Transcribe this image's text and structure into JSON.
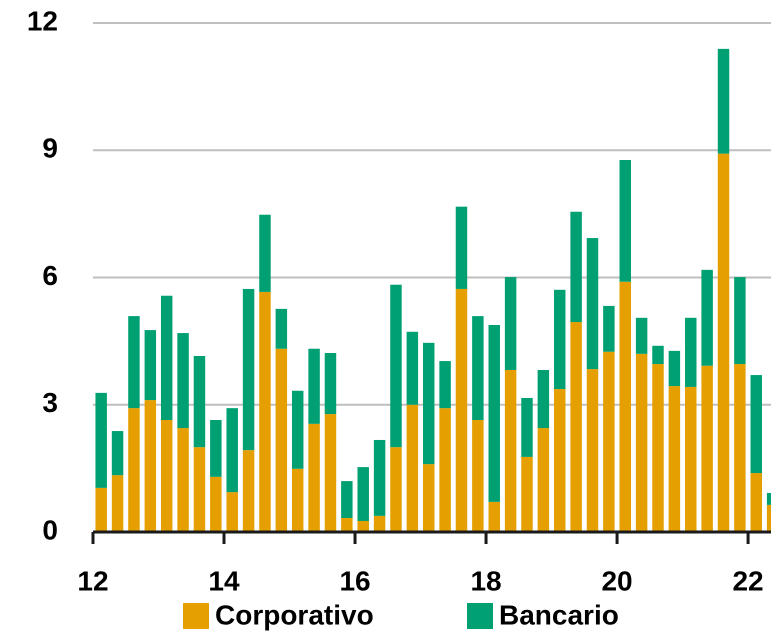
{
  "chart_data": {
    "type": "bar",
    "stacked": true,
    "x": [
      12.125,
      12.375,
      12.625,
      12.875,
      13.125,
      13.375,
      13.625,
      13.875,
      14.125,
      14.375,
      14.625,
      14.875,
      15.125,
      15.375,
      15.625,
      15.875,
      16.125,
      16.375,
      16.625,
      16.875,
      17.125,
      17.375,
      17.625,
      17.875,
      18.125,
      18.375,
      18.625,
      18.875,
      19.125,
      19.375,
      19.625,
      19.875,
      20.125,
      20.375,
      20.625,
      20.875,
      21.125,
      21.375,
      21.625,
      21.875,
      22.125,
      22.375
    ],
    "series": [
      {
        "name": "Corporativo",
        "color": "#e59f00",
        "values": [
          1.04,
          1.34,
          2.92,
          3.11,
          2.64,
          2.45,
          2.0,
          1.3,
          0.94,
          1.93,
          5.66,
          4.32,
          1.49,
          2.55,
          2.78,
          0.33,
          0.26,
          0.38,
          2.0,
          3.0,
          1.6,
          2.92,
          5.73,
          2.64,
          0.71,
          3.82,
          1.77,
          2.45,
          3.37,
          4.95,
          3.84,
          4.25,
          5.9,
          4.2,
          3.96,
          3.44,
          3.42,
          3.92,
          8.92,
          3.96,
          1.39,
          0.64
        ]
      },
      {
        "name": "Bancario",
        "color": "#00a072",
        "values": [
          2.24,
          1.04,
          2.17,
          1.65,
          2.93,
          2.24,
          2.15,
          1.34,
          1.98,
          3.8,
          1.82,
          0.94,
          1.84,
          1.77,
          1.44,
          0.87,
          1.27,
          1.79,
          3.83,
          1.72,
          2.86,
          1.11,
          1.94,
          2.45,
          4.17,
          2.19,
          1.39,
          1.37,
          2.34,
          2.6,
          3.09,
          1.08,
          2.87,
          0.85,
          0.43,
          0.83,
          1.63,
          2.26,
          2.47,
          2.05,
          2.31,
          0.28
        ]
      }
    ],
    "xlim": [
      12,
      22.35
    ],
    "xticks": [
      12,
      14,
      16,
      18,
      20,
      22
    ],
    "ylim": [
      0,
      12
    ],
    "yticks": [
      0,
      3,
      6,
      9,
      12
    ],
    "grid": true,
    "legend": "bottom"
  }
}
